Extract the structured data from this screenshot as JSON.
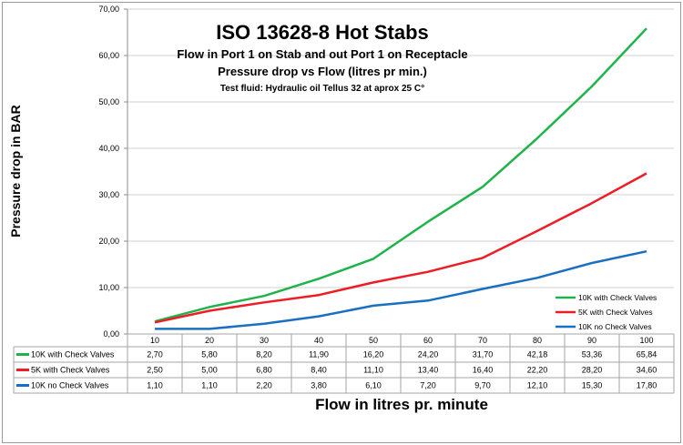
{
  "chart_data": {
    "type": "line",
    "title": "ISO 13628-8 Hot Stabs",
    "subtitle_lines": [
      "Flow in Port 1 on Stab and out Port 1 on Receptacle",
      "Pressure drop  vs Flow (litres pr min.)",
      "Test fluid: Hydraulic oil Tellus 32 at aprox 25 C°"
    ],
    "xlabel": "Flow in litres pr. minute",
    "ylabel": "Pressure drop in BAR",
    "categories": [
      "10",
      "20",
      "30",
      "40",
      "50",
      "60",
      "70",
      "80",
      "90",
      "100"
    ],
    "ylim": [
      0,
      70
    ],
    "yticks": [
      "0,00",
      "10,00",
      "20,00",
      "30,00",
      "40,00",
      "50,00",
      "60,00",
      "70,00"
    ],
    "grid": true,
    "legend_position": "bottom-right",
    "series": [
      {
        "name": "10K with Check Valves",
        "color": "#1fb44b",
        "values": [
          2.7,
          5.8,
          8.2,
          11.9,
          16.2,
          24.2,
          31.7,
          42.18,
          53.36,
          65.84
        ],
        "labels": [
          "2,70",
          "5,80",
          "8,20",
          "11,90",
          "16,20",
          "24,20",
          "31,70",
          "42,18",
          "53,36",
          "65,84"
        ]
      },
      {
        "name": "5K with Check Valves",
        "color": "#ee1c24",
        "values": [
          2.5,
          5.0,
          6.8,
          8.4,
          11.1,
          13.4,
          16.4,
          22.2,
          28.2,
          34.6
        ],
        "labels": [
          "2,50",
          "5,00",
          "6,80",
          "8,40",
          "11,10",
          "13,40",
          "16,40",
          "22,20",
          "28,20",
          "34,60"
        ]
      },
      {
        "name": "10K no Check Valves",
        "color": "#1a6fc0",
        "values": [
          1.1,
          1.1,
          2.2,
          3.8,
          6.1,
          7.2,
          9.7,
          12.1,
          15.3,
          17.8
        ],
        "labels": [
          "1,10",
          "1,10",
          "2,20",
          "3,80",
          "6,10",
          "7,20",
          "9,70",
          "12,10",
          "15,30",
          "17,80"
        ]
      }
    ]
  }
}
